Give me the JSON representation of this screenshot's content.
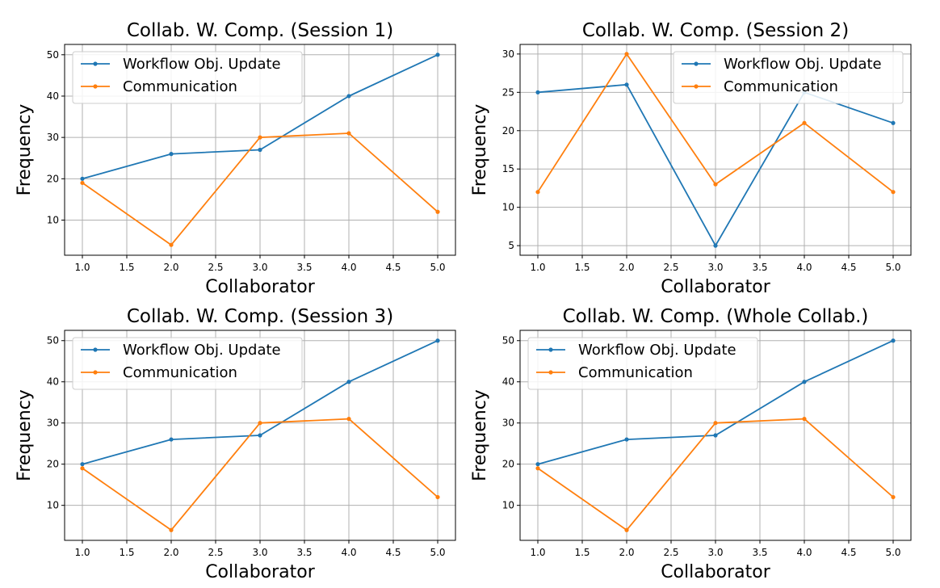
{
  "colors": {
    "workflow": "#1f77b4",
    "communication": "#ff7f0e"
  },
  "chart_data": [
    {
      "type": "line",
      "title": "Collab. W. Comp. (Session 1)",
      "xlabel": "Collaborator",
      "ylabel": "Frequency",
      "x": [
        1,
        2,
        3,
        4,
        5
      ],
      "xlim": [
        0.8,
        5.2
      ],
      "ylim": [
        1.5,
        52.5
      ],
      "xticks": [
        "1.0",
        "1.5",
        "2.0",
        "2.5",
        "3.0",
        "3.5",
        "4.0",
        "4.5",
        "5.0"
      ],
      "yticks": [
        "10",
        "20",
        "30",
        "40",
        "50"
      ],
      "grid": true,
      "legend_position": "upper-left",
      "series": [
        {
          "name": "Workflow Obj. Update",
          "values": [
            20,
            26,
            27,
            40,
            50
          ]
        },
        {
          "name": "Communication",
          "values": [
            19,
            4,
            30,
            31,
            12
          ]
        }
      ]
    },
    {
      "type": "line",
      "title": "Collab. W. Comp. (Session 2)",
      "xlabel": "Collaborator",
      "ylabel": "Frequency",
      "x": [
        1,
        2,
        3,
        4,
        5
      ],
      "xlim": [
        0.8,
        5.2
      ],
      "ylim": [
        3.75,
        31.25
      ],
      "xticks": [
        "1.0",
        "1.5",
        "2.0",
        "2.5",
        "3.0",
        "3.5",
        "4.0",
        "4.5",
        "5.0"
      ],
      "yticks": [
        "5",
        "10",
        "15",
        "20",
        "25",
        "30"
      ],
      "grid": true,
      "legend_position": "upper-right",
      "series": [
        {
          "name": "Workflow Obj. Update",
          "values": [
            25,
            26,
            5,
            25,
            21
          ]
        },
        {
          "name": "Communication",
          "values": [
            12,
            30,
            13,
            21,
            12
          ]
        }
      ]
    },
    {
      "type": "line",
      "title": "Collab. W. Comp. (Session 3)",
      "xlabel": "Collaborator",
      "ylabel": "Frequency",
      "x": [
        1,
        2,
        3,
        4,
        5
      ],
      "xlim": [
        0.8,
        5.2
      ],
      "ylim": [
        1.5,
        52.5
      ],
      "xticks": [
        "1.0",
        "1.5",
        "2.0",
        "2.5",
        "3.0",
        "3.5",
        "4.0",
        "4.5",
        "5.0"
      ],
      "yticks": [
        "10",
        "20",
        "30",
        "40",
        "50"
      ],
      "grid": true,
      "legend_position": "upper-left",
      "series": [
        {
          "name": "Workflow Obj. Update",
          "values": [
            20,
            26,
            27,
            40,
            50
          ]
        },
        {
          "name": "Communication",
          "values": [
            19,
            4,
            30,
            31,
            12
          ]
        }
      ]
    },
    {
      "type": "line",
      "title": "Collab. W. Comp. (Whole Collab.)",
      "xlabel": "Collaborator",
      "ylabel": "Frequency",
      "x": [
        1,
        2,
        3,
        4,
        5
      ],
      "xlim": [
        0.8,
        5.2
      ],
      "ylim": [
        1.5,
        52.5
      ],
      "xticks": [
        "1.0",
        "1.5",
        "2.0",
        "2.5",
        "3.0",
        "3.5",
        "4.0",
        "4.5",
        "5.0"
      ],
      "yticks": [
        "10",
        "20",
        "30",
        "40",
        "50"
      ],
      "grid": true,
      "legend_position": "upper-left",
      "series": [
        {
          "name": "Workflow Obj. Update",
          "values": [
            20,
            26,
            27,
            40,
            50
          ]
        },
        {
          "name": "Communication",
          "values": [
            19,
            4,
            30,
            31,
            12
          ]
        }
      ]
    }
  ]
}
